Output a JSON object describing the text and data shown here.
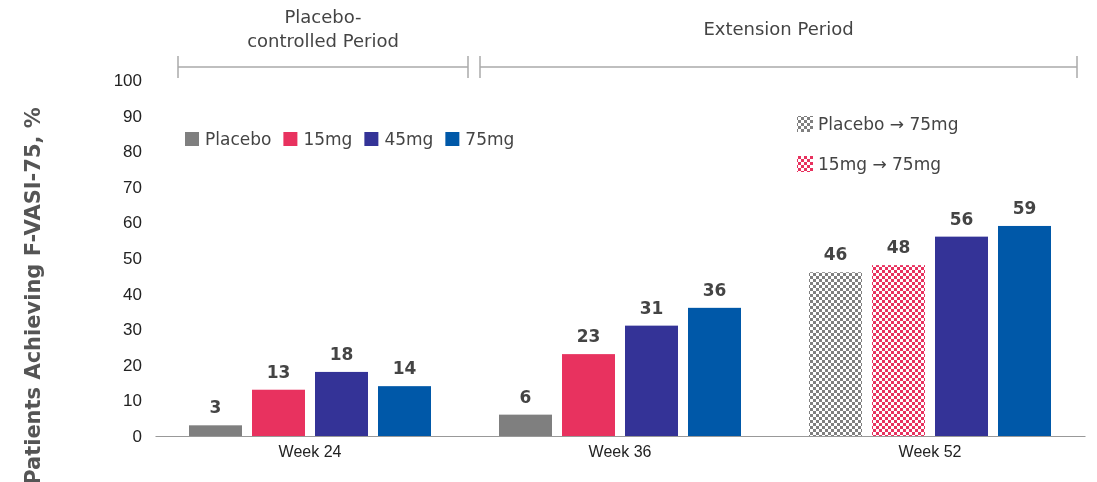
{
  "chart_data": {
    "type": "bar",
    "ylabel": "Patients Achieving F-VASI-75, %",
    "categories": [
      "Week 24",
      "Week 36",
      "Week 52"
    ],
    "series": [
      {
        "name": "Placebo",
        "color": "#7f7f7f",
        "values": [
          3,
          6,
          null
        ]
      },
      {
        "name": "15mg",
        "color": "#e8325f",
        "values": [
          13,
          23,
          null
        ]
      },
      {
        "name": "Placebo → 75mg",
        "color": "#7f7f7f",
        "values": [
          null,
          null,
          46
        ]
      },
      {
        "name": "15mg → 75mg",
        "color": "#e8325f",
        "values": [
          null,
          null,
          48
        ]
      },
      {
        "name": "45mg",
        "color": "#343397",
        "values": [
          18,
          31,
          56
        ]
      },
      {
        "name": "75mg",
        "color": "#0058a8",
        "values": [
          14,
          36,
          59
        ]
      }
    ],
    "ylim": [
      0,
      100
    ],
    "yticks": [
      0,
      10,
      20,
      30,
      40,
      50,
      60,
      70,
      80,
      90,
      100
    ],
    "data_labels": true,
    "legend": "top left",
    "grid": false,
    "annotations": [
      "Placebo-\ncontrolled Period",
      "Extension Period"
    ]
  }
}
